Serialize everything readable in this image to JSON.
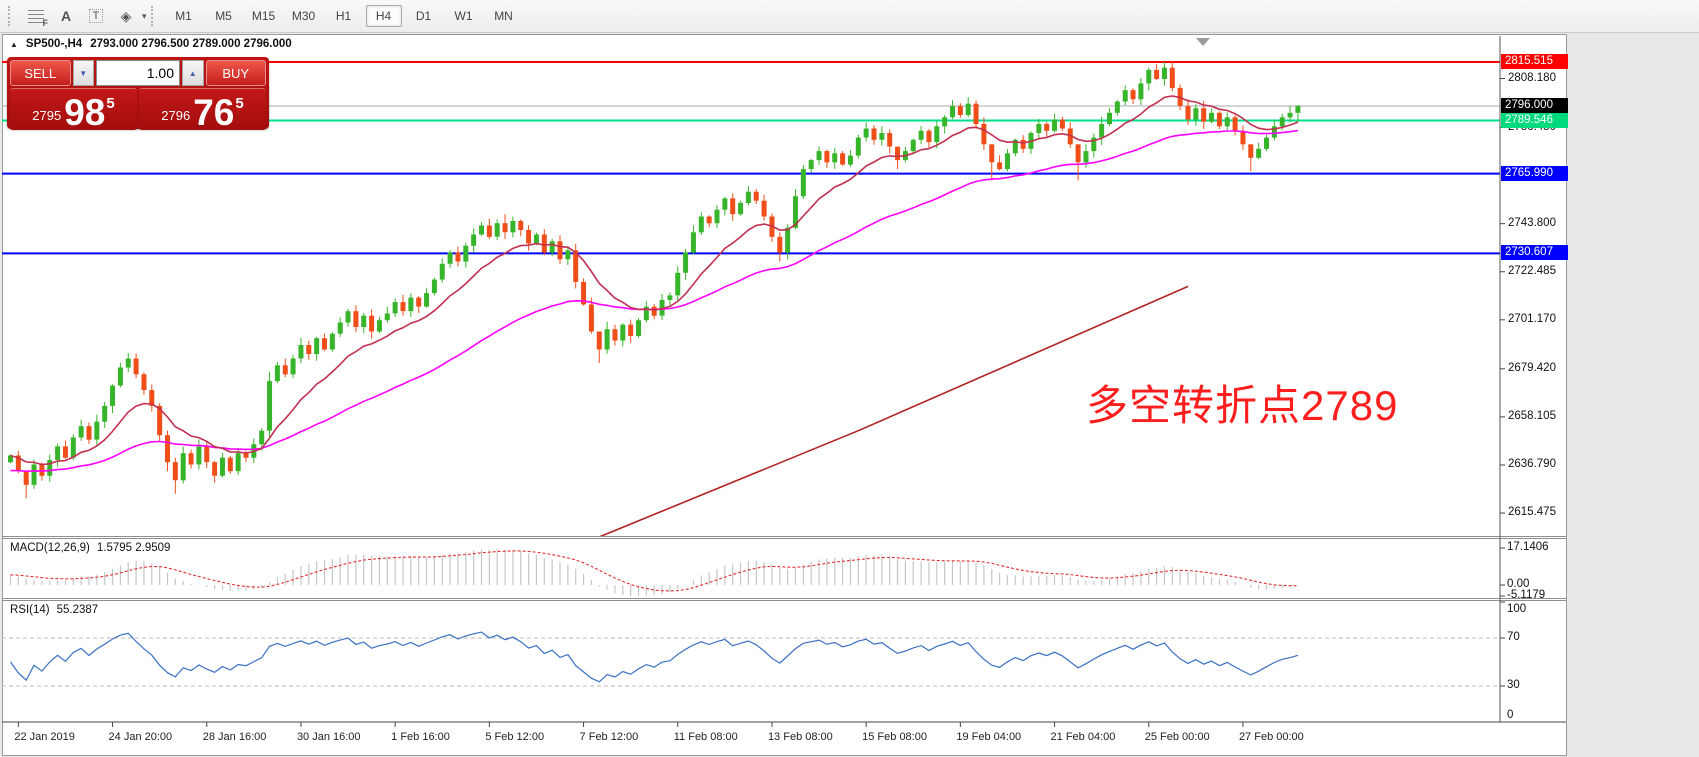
{
  "toolbar": {
    "tools": [
      {
        "name": "fibonacci-tool",
        "glyph": "F"
      },
      {
        "name": "text-tool",
        "glyph": "A"
      },
      {
        "name": "text-label-tool",
        "glyph": "T"
      },
      {
        "name": "arrows-tool",
        "glyph": "◈"
      }
    ],
    "timeframes": [
      "M1",
      "M5",
      "M15",
      "M30",
      "H1",
      "H4",
      "D1",
      "W1",
      "MN"
    ],
    "active_timeframe": "H4"
  },
  "chart": {
    "title_symbol": "SP500-,H4",
    "title_ohlc": "2793.000 2796.500 2789.000 2796.000",
    "collapse_icon": "▲"
  },
  "trade_panel": {
    "sell_label": "SELL",
    "buy_label": "BUY",
    "volume": "1.00",
    "down_glyph": "▼",
    "up_glyph": "▲",
    "sell_price_small": "2795",
    "sell_price_big": "98",
    "sell_price_sup": "5",
    "buy_price_small": "2796",
    "buy_price_big": "76",
    "buy_price_sup": "5"
  },
  "annotation": {
    "text": "多空转折点2789",
    "color": "#ff1e1e"
  },
  "price_axis": {
    "ticks": [
      {
        "price": 2808.18,
        "label": "2808.180"
      },
      {
        "price": 2786.43,
        "label": "2786.430"
      },
      {
        "price": 2743.8,
        "label": "2743.800"
      },
      {
        "price": 2722.485,
        "label": "2722.485"
      },
      {
        "price": 2701.17,
        "label": "2701.170"
      },
      {
        "price": 2679.42,
        "label": "2679.420"
      },
      {
        "price": 2658.105,
        "label": "2658.105"
      },
      {
        "price": 2636.79,
        "label": "2636.790"
      },
      {
        "price": 2615.475,
        "label": "2615.475"
      }
    ],
    "badges": [
      {
        "price": 2815.515,
        "label": "2815.515",
        "color": "#ff0000",
        "line": "#ff0000",
        "lw": 2
      },
      {
        "price": 2796.0,
        "label": "2796.000",
        "color": "#000000",
        "line": "#ababab",
        "lw": 1
      },
      {
        "price": 2789.546,
        "label": "2789.546",
        "color": "#00d97e",
        "line": "#00e08a",
        "lw": 2
      },
      {
        "price": 2765.99,
        "label": "2765.990",
        "color": "#0000ff",
        "line": "#0000ff",
        "lw": 2
      },
      {
        "price": 2730.607,
        "label": "2730.607",
        "color": "#0000ff",
        "line": "#0000ff",
        "lw": 2
      }
    ]
  },
  "chart_data": {
    "type": "candlestick",
    "symbol": "SP500-",
    "timeframe": "H4",
    "last_bar": {
      "open": 2793.0,
      "high": 2796.5,
      "low": 2789.0,
      "close": 2796.0
    },
    "price_range": [
      2607.5,
      2819.5
    ],
    "levels": [
      2815.515,
      2796.0,
      2789.546,
      2765.99,
      2730.607
    ],
    "colors": {
      "up": "#36b52a",
      "down": "#ef4e18",
      "ma_fast": "#c13050",
      "ma_slow": "#ff00ff",
      "trend": "#b22222"
    },
    "trend_line_points": [
      [
        73,
        2602
      ],
      [
        108,
        2652
      ],
      [
        150,
        2716
      ]
    ],
    "bars": [
      2641,
      2634,
      [
        2628,
        2631,
        2622
      ],
      2637,
      2632,
      2639,
      2645,
      2640,
      2649,
      2654,
      2648,
      2656,
      2663,
      2672,
      2680,
      [
        2684,
        2686.5,
        2678
      ],
      2677,
      2670,
      2663,
      2650,
      [
        2638,
        2652,
        2634
      ],
      [
        2630,
        2640,
        2624
      ],
      2642,
      2637,
      2645,
      2638,
      2632,
      2640,
      2634,
      2642,
      2640,
      2646,
      2652,
      [
        2674,
        2678,
        2649
      ],
      2681,
      2677,
      2684,
      2690,
      2686,
      2693,
      2688,
      2695,
      2700,
      2705,
      2698,
      2703,
      2696,
      2701,
      2704,
      2709,
      2705,
      2711,
      2707,
      2713,
      2719,
      2726,
      2731,
      2727,
      2734,
      2739,
      2743,
      2738,
      2744,
      [
        2740,
        2748,
        2737
      ],
      2745,
      2741,
      2735,
      2739,
      2731,
      2736,
      2728,
      2732,
      2718,
      2708,
      2696,
      [
        2688,
        2694,
        2682
      ],
      2697,
      2692,
      2699,
      2694,
      2701,
      2707,
      2703,
      2710,
      2712,
      2722,
      2731,
      2740,
      2747,
      2744,
      2750,
      2755,
      2748,
      2753,
      2758,
      2754,
      2747,
      2738,
      [
        2731,
        2740,
        2727
      ],
      2742,
      2756,
      2768,
      2772,
      2776,
      2771,
      2775,
      2770,
      2774,
      2782,
      2786,
      2781,
      2784,
      2778,
      [
        2772,
        2776,
        2768
      ],
      2776,
      2781,
      2785,
      2780,
      2787,
      2791,
      2796,
      2792,
      [
        2797,
        2800,
        2791
      ],
      2788,
      2779,
      [
        2771,
        2776,
        2763
      ],
      2768,
      2775,
      2781,
      2777,
      2784,
      2788,
      2785,
      2790,
      2786,
      2779,
      [
        2771,
        2778,
        2763
      ],
      2776,
      2782,
      2788,
      2793,
      2798,
      2803,
      2799,
      2806,
      2812,
      2808,
      [
        2813,
        2815.5,
        2805
      ],
      2804,
      2796,
      2790,
      2795,
      2789,
      2793,
      2787,
      2791,
      2785,
      2779,
      [
        2773,
        2777,
        2767
      ],
      2777,
      2782,
      2787,
      2791,
      2793,
      [
        2796,
        2796.5,
        2789
      ]
    ],
    "time_labels": [
      {
        "index": 1,
        "label": "22 Jan 2019"
      },
      {
        "index": 13,
        "label": "24 Jan 20:00"
      },
      {
        "index": 25,
        "label": "28 Jan 16:00"
      },
      {
        "index": 37,
        "label": "30 Jan 16:00"
      },
      {
        "index": 49,
        "label": "1 Feb 16:00"
      },
      {
        "index": 61,
        "label": "5 Feb 12:00"
      },
      {
        "index": 73,
        "label": "7 Feb 12:00"
      },
      {
        "index": 85,
        "label": "11 Feb 08:00"
      },
      {
        "index": 97,
        "label": "13 Feb 08:00"
      },
      {
        "index": 109,
        "label": "15 Feb 08:00"
      },
      {
        "index": 121,
        "label": "19 Feb 04:00"
      },
      {
        "index": 133,
        "label": "21 Feb 04:00"
      },
      {
        "index": 145,
        "label": "25 Feb 00:00"
      },
      {
        "index": 157,
        "label": "27 Feb 00:00"
      }
    ]
  },
  "macd": {
    "label": "MACD(12,26,9)",
    "values": "1.5795 2.9509",
    "axis": [
      {
        "value": 17.1406,
        "label": "17.1406"
      },
      {
        "value": 0,
        "label": "0.00"
      },
      {
        "value": -5.1179,
        "label": "-5.1179"
      }
    ]
  },
  "rsi": {
    "label": "RSI(14)",
    "value": "55.2387",
    "levels": [
      70,
      30
    ],
    "axis": [
      {
        "value": 100,
        "label": "100"
      },
      {
        "value": 70,
        "label": "70"
      },
      {
        "value": 30,
        "label": "30"
      },
      {
        "value": 0,
        "label": "0"
      }
    ]
  }
}
